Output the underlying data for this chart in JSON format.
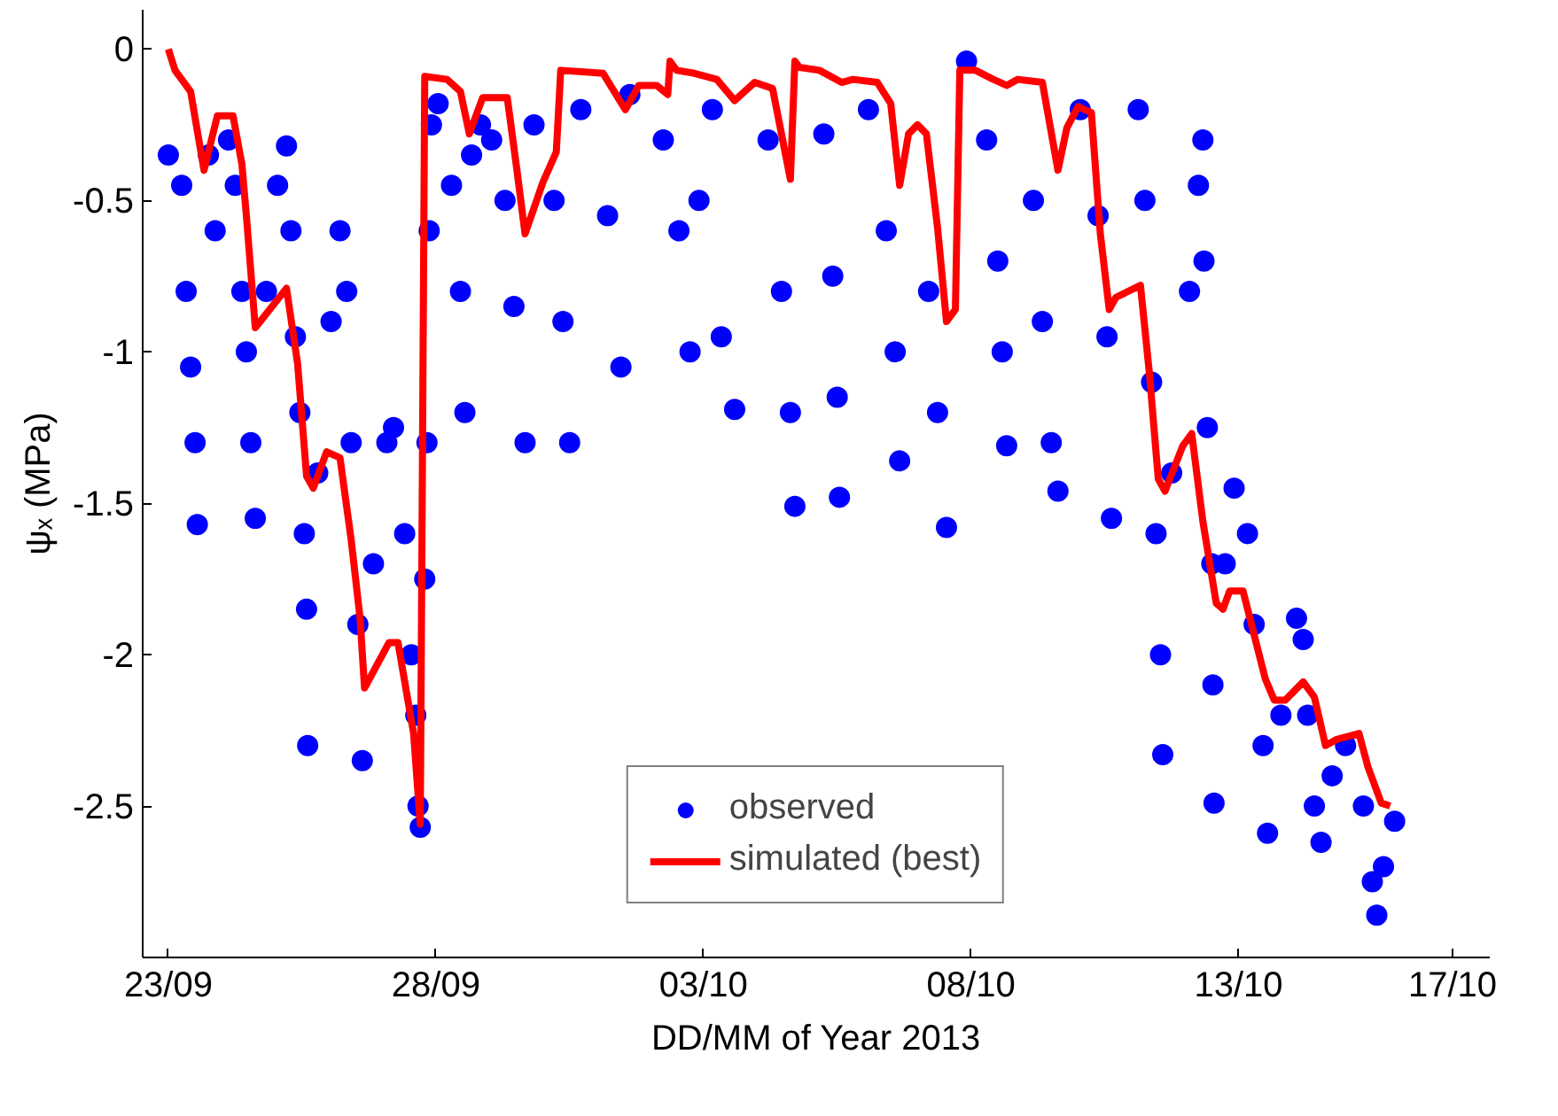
{
  "chart_data": {
    "type": "scatter",
    "xlabel": "DD/MM of Year 2013",
    "ylabel": "ψₓ (MPa)",
    "xlim": [
      "2013-09-22T12:30",
      "2013-10-17T16:40"
    ],
    "ylim": [
      -3,
      0.13
    ],
    "xticks": [
      {
        "value": "2013-09-23",
        "label": "23/09"
      },
      {
        "value": "2013-09-28",
        "label": "28/09"
      },
      {
        "value": "2013-10-03",
        "label": "03/10"
      },
      {
        "value": "2013-10-08",
        "label": "08/10"
      },
      {
        "value": "2013-10-13",
        "label": "13/10"
      },
      {
        "value": "2013-10-17",
        "label": "17/10"
      }
    ],
    "yticks": [
      -2.5,
      -2,
      -1.5,
      -1,
      -0.5,
      0
    ],
    "grid": false,
    "legend": "bottom",
    "series": [
      {
        "name": "observed",
        "marker": "circle",
        "color": "#0000ff",
        "x": [
          "2013-09-23T00:00",
          "2013-09-23T06:00",
          "2013-09-23T08:00",
          "2013-09-23T10:00",
          "2013-09-23T12:00",
          "2013-09-23T13:00",
          "2013-09-23T18:00",
          "2013-09-23T21:00",
          "2013-09-24T03:00",
          "2013-09-24T06:00",
          "2013-09-24T09:00",
          "2013-09-24T11:00",
          "2013-09-24T13:00",
          "2013-09-24T15:00",
          "2013-09-24T20:00",
          "2013-09-25T01:00",
          "2013-09-25T05:00",
          "2013-09-25T07:00",
          "2013-09-25T09:00",
          "2013-09-25T11:00",
          "2013-09-25T13:00",
          "2013-09-25T14:00",
          "2013-09-25T14:30",
          "2013-09-25T19:00",
          "2013-09-26T01:00",
          "2013-09-26T05:00",
          "2013-09-26T08:00",
          "2013-09-26T10:00",
          "2013-09-26T13:00",
          "2013-09-26T15:00",
          "2013-09-26T20:00",
          "2013-09-27T02:00",
          "2013-09-27T05:00",
          "2013-09-27T10:00",
          "2013-09-27T13:00",
          "2013-09-27T15:00",
          "2013-09-27T16:00",
          "2013-09-27T17:00",
          "2013-09-27T19:00",
          "2013-09-27T20:00",
          "2013-09-27T21:00",
          "2013-09-27T22:00",
          "2013-09-28T01:00",
          "2013-09-28T07:00",
          "2013-09-28T11:00",
          "2013-09-28T13:00",
          "2013-09-28T16:00",
          "2013-09-28T20:00",
          "2013-09-29T01:00",
          "2013-09-29T07:00",
          "2013-09-29T11:00",
          "2013-09-29T16:00",
          "2013-09-29T20:00",
          "2013-09-30T05:00",
          "2013-09-30T09:00",
          "2013-09-30T12:00",
          "2013-09-30T17:00",
          "2013-10-01T05:00",
          "2013-10-01T11:00",
          "2013-10-01T15:00",
          "2013-10-02T06:00",
          "2013-10-02T13:00",
          "2013-10-02T18:00",
          "2013-10-02T22:00",
          "2013-10-03T04:00",
          "2013-10-03T08:00",
          "2013-10-03T14:00",
          "2013-10-04T05:00",
          "2013-10-04T11:00",
          "2013-10-04T15:00",
          "2013-10-04T17:00",
          "2013-10-05T06:00",
          "2013-10-05T10:00",
          "2013-10-05T12:00",
          "2013-10-05T13:00",
          "2013-10-06T02:00",
          "2013-10-06T10:00",
          "2013-10-06T14:00",
          "2013-10-06T16:00",
          "2013-10-07T05:00",
          "2013-10-07T09:00",
          "2013-10-07T13:00",
          "2013-10-07T22:00",
          "2013-10-08T07:00",
          "2013-10-08T12:00",
          "2013-10-08T14:00",
          "2013-10-08T16:00",
          "2013-10-09T04:00",
          "2013-10-09T08:00",
          "2013-10-09T12:00",
          "2013-10-09T15:00",
          "2013-10-10T01:00",
          "2013-10-10T09:00",
          "2013-10-10T13:00",
          "2013-10-10T15:00",
          "2013-10-11T03:00",
          "2013-10-11T06:00",
          "2013-10-11T09:00",
          "2013-10-11T11:00",
          "2013-10-11T13:00",
          "2013-10-11T14:00",
          "2013-10-11T18:00",
          "2013-10-12T02:00",
          "2013-10-12T06:00",
          "2013-10-12T08:00",
          "2013-10-12T08:30",
          "2013-10-12T10:00",
          "2013-10-12T12:00",
          "2013-10-12T12:30",
          "2013-10-12T13:00",
          "2013-10-12T18:00",
          "2013-10-12T22:00",
          "2013-10-13T04:00",
          "2013-10-13T07:00",
          "2013-10-13T11:00",
          "2013-10-13T13:00",
          "2013-10-13T19:00",
          "2013-10-14T02:00",
          "2013-10-14T05:00",
          "2013-10-14T07:00",
          "2013-10-14T10:00",
          "2013-10-14T13:00",
          "2013-10-14T18:00",
          "2013-10-15T00:00",
          "2013-10-15T08:00",
          "2013-10-15T12:00",
          "2013-10-15T14:00",
          "2013-10-15T17:00",
          "2013-10-15T22:00"
        ],
        "values": [
          -0.35,
          -0.45,
          -0.8,
          -1.05,
          -1.3,
          -1.57,
          -0.35,
          -0.6,
          -0.3,
          -0.45,
          -0.8,
          -1.0,
          -1.3,
          -1.55,
          -0.8,
          -0.45,
          -0.32,
          -0.6,
          -0.95,
          -1.2,
          -1.6,
          -1.85,
          -2.3,
          -1.4,
          -0.9,
          -0.6,
          -0.8,
          -1.3,
          -1.9,
          -2.35,
          -1.7,
          -1.3,
          -1.25,
          -1.6,
          -2.0,
          -2.2,
          -2.5,
          -2.57,
          -1.75,
          -1.3,
          -0.6,
          -0.25,
          -0.18,
          -0.45,
          -0.8,
          -1.2,
          -0.35,
          -0.25,
          -0.3,
          -0.5,
          -0.85,
          -1.3,
          -0.25,
          -0.5,
          -0.9,
          -1.3,
          -0.2,
          -0.55,
          -1.05,
          -0.15,
          -0.3,
          -0.6,
          -1.0,
          -0.5,
          -0.2,
          -0.95,
          -1.19,
          -0.3,
          -0.8,
          -1.2,
          -1.51,
          -0.28,
          -0.75,
          -1.15,
          -1.48,
          -0.2,
          -0.6,
          -1.0,
          -1.36,
          -0.8,
          -1.2,
          -1.58,
          -0.04,
          -0.3,
          -0.7,
          -1.0,
          -1.31,
          -0.5,
          -0.9,
          -1.3,
          -1.46,
          -0.2,
          -0.55,
          -0.95,
          -1.55,
          -0.2,
          -0.5,
          -1.1,
          -1.6,
          -2.0,
          -2.33,
          -1.4,
          -0.8,
          -0.45,
          -0.3,
          -0.7,
          -1.25,
          -1.7,
          -2.1,
          -2.49,
          -1.7,
          -1.45,
          -1.6,
          -1.9,
          -2.3,
          -2.59,
          -2.2,
          -1.88,
          -1.95,
          -2.2,
          -2.5,
          -2.62,
          -2.4,
          -2.3,
          -2.5,
          -2.75,
          -2.86,
          -2.7,
          -2.55
        ]
      },
      {
        "name": "simulated (best)",
        "type": "line",
        "line_style": "solid",
        "color": "#ff0000",
        "x": [
          "2013-09-23T00:00",
          "2013-09-23T03:00",
          "2013-09-23T10:00",
          "2013-09-23T16:00",
          "2013-09-23T22:00",
          "2013-09-24T05:00",
          "2013-09-24T09:00",
          "2013-09-24T11:00",
          "2013-09-24T15:00",
          "2013-09-25T05:00",
          "2013-09-25T10:00",
          "2013-09-25T14:00",
          "2013-09-25T17:00",
          "2013-09-25T23:00",
          "2013-09-26T05:00",
          "2013-09-26T10:00",
          "2013-09-26T14:00",
          "2013-09-26T16:00",
          "2013-09-27T03:00",
          "2013-09-27T07:00",
          "2013-09-27T14:00",
          "2013-09-27T17:00",
          "2013-09-27T19:00",
          "2013-09-28T05:00",
          "2013-09-28T11:00",
          "2013-09-28T15:00",
          "2013-09-28T21:00",
          "2013-09-29T08:00",
          "2013-09-29T12:00",
          "2013-09-29T16:00",
          "2013-09-30T00:00",
          "2013-09-30T06:00",
          "2013-09-30T08:00",
          "2013-10-01T03:00",
          "2013-10-01T13:00",
          "2013-10-01T19:00",
          "2013-10-02T03:00",
          "2013-10-02T08:00",
          "2013-10-02T09:00",
          "2013-10-02T12:00",
          "2013-10-02T20:00",
          "2013-10-03T06:00",
          "2013-10-03T14:00",
          "2013-10-03T23:00",
          "2013-10-04T07:00",
          "2013-10-04T15:00",
          "2013-10-04T17:00",
          "2013-10-04T19:00",
          "2013-10-05T04:00",
          "2013-10-05T14:00",
          "2013-10-05T19:00",
          "2013-10-06T06:00",
          "2013-10-06T12:00",
          "2013-10-06T16:00",
          "2013-10-06T20:00",
          "2013-10-07T00:00",
          "2013-10-07T04:00",
          "2013-10-07T09:00",
          "2013-10-07T13:00",
          "2013-10-07T17:00",
          "2013-10-07T19:00",
          "2013-10-08T02:00",
          "2013-10-08T10:00",
          "2013-10-08T16:00",
          "2013-10-08T21:00",
          "2013-10-09T08:00",
          "2013-10-09T15:00",
          "2013-10-09T19:00",
          "2013-10-10T00:00",
          "2013-10-10T06:00",
          "2013-10-10T10:00",
          "2013-10-10T14:00",
          "2013-10-10T17:00",
          "2013-10-11T04:00",
          "2013-10-11T08:00",
          "2013-10-11T12:00",
          "2013-10-11T15:00",
          "2013-10-11T23:00",
          "2013-10-12T03:00",
          "2013-10-12T08:00",
          "2013-10-12T14:00",
          "2013-10-12T17:00",
          "2013-10-12T20:00",
          "2013-10-13T02:00",
          "2013-10-13T12:00",
          "2013-10-13T16:00",
          "2013-10-13T21:00",
          "2013-10-14T05:00",
          "2013-10-14T10:00",
          "2013-10-14T15:00",
          "2013-10-14T20:00",
          "2013-10-15T06:00",
          "2013-10-15T10:00",
          "2013-10-15T16:00",
          "2013-10-15T20:00"
        ],
        "values": [
          0,
          -0.07,
          -0.14,
          -0.4,
          -0.22,
          -0.22,
          -0.38,
          -0.55,
          -0.92,
          -0.79,
          -1.04,
          -1.41,
          -1.45,
          -1.33,
          -1.35,
          -1.62,
          -1.88,
          -2.11,
          -1.96,
          -1.96,
          -2.26,
          -2.56,
          -0.09,
          -0.1,
          -0.14,
          -0.28,
          -0.16,
          -0.16,
          -0.38,
          -0.61,
          -0.44,
          -0.34,
          -0.07,
          -0.08,
          -0.2,
          -0.12,
          -0.12,
          -0.15,
          -0.04,
          -0.07,
          -0.08,
          -0.1,
          -0.17,
          -0.11,
          -0.13,
          -0.43,
          -0.04,
          -0.06,
          -0.07,
          -0.11,
          -0.1,
          -0.11,
          -0.18,
          -0.45,
          -0.28,
          -0.25,
          -0.28,
          -0.59,
          -0.9,
          -0.86,
          -0.07,
          -0.07,
          -0.1,
          -0.12,
          -0.1,
          -0.11,
          -0.4,
          -0.26,
          -0.19,
          -0.21,
          -0.61,
          -0.86,
          -0.82,
          -0.78,
          -1.07,
          -1.42,
          -1.46,
          -1.31,
          -1.27,
          -1.56,
          -1.83,
          -1.85,
          -1.79,
          -1.79,
          -2.08,
          -2.15,
          -2.15,
          -2.09,
          -2.14,
          -2.3,
          -2.28,
          -2.26,
          -2.37,
          -2.49,
          -2.5
        ]
      }
    ]
  }
}
